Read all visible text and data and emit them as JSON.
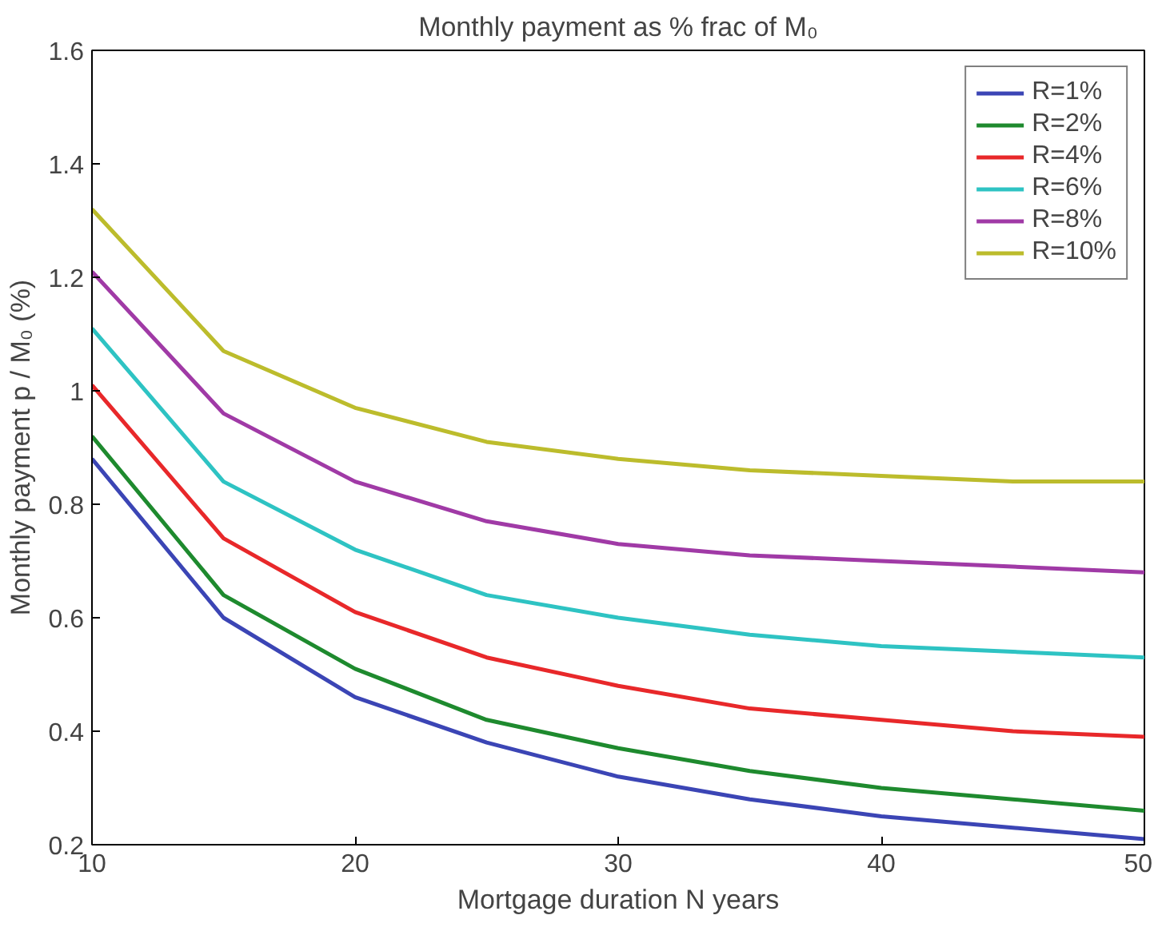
{
  "chart_data": {
    "type": "line",
    "title": "Monthly payment as % frac of M₀",
    "xlabel": "Mortgage duration N years",
    "ylabel": "Monthly payment p / M₀ (%)",
    "x": [
      10,
      15,
      20,
      25,
      30,
      35,
      40,
      45,
      50
    ],
    "xlim": [
      10,
      50
    ],
    "xticks": [
      10,
      20,
      30,
      40,
      50
    ],
    "ylim": [
      0.2,
      1.6
    ],
    "yticks": [
      0.2,
      0.4,
      0.6,
      0.8,
      1,
      1.2,
      1.4,
      1.6
    ],
    "legend": "top right",
    "line_style": "solid",
    "series": [
      {
        "name": "R=1%",
        "color": "#3b45b5",
        "values": [
          0.88,
          0.6,
          0.46,
          0.38,
          0.32,
          0.28,
          0.25,
          0.23,
          0.21
        ]
      },
      {
        "name": "R=2%",
        "color": "#1e8a2e",
        "values": [
          0.92,
          0.64,
          0.51,
          0.42,
          0.37,
          0.33,
          0.3,
          0.28,
          0.26
        ]
      },
      {
        "name": "R=4%",
        "color": "#e8282a",
        "values": [
          1.01,
          0.74,
          0.61,
          0.53,
          0.48,
          0.44,
          0.42,
          0.4,
          0.39
        ]
      },
      {
        "name": "R=6%",
        "color": "#2ec3c3",
        "values": [
          1.11,
          0.84,
          0.72,
          0.64,
          0.6,
          0.57,
          0.55,
          0.54,
          0.53
        ]
      },
      {
        "name": "R=8%",
        "color": "#a03aa6",
        "values": [
          1.21,
          0.96,
          0.84,
          0.77,
          0.73,
          0.71,
          0.7,
          0.69,
          0.68
        ]
      },
      {
        "name": "R=10%",
        "color": "#bcbc2c",
        "values": [
          1.32,
          1.07,
          0.97,
          0.91,
          0.88,
          0.86,
          0.85,
          0.84,
          0.84
        ]
      }
    ]
  }
}
